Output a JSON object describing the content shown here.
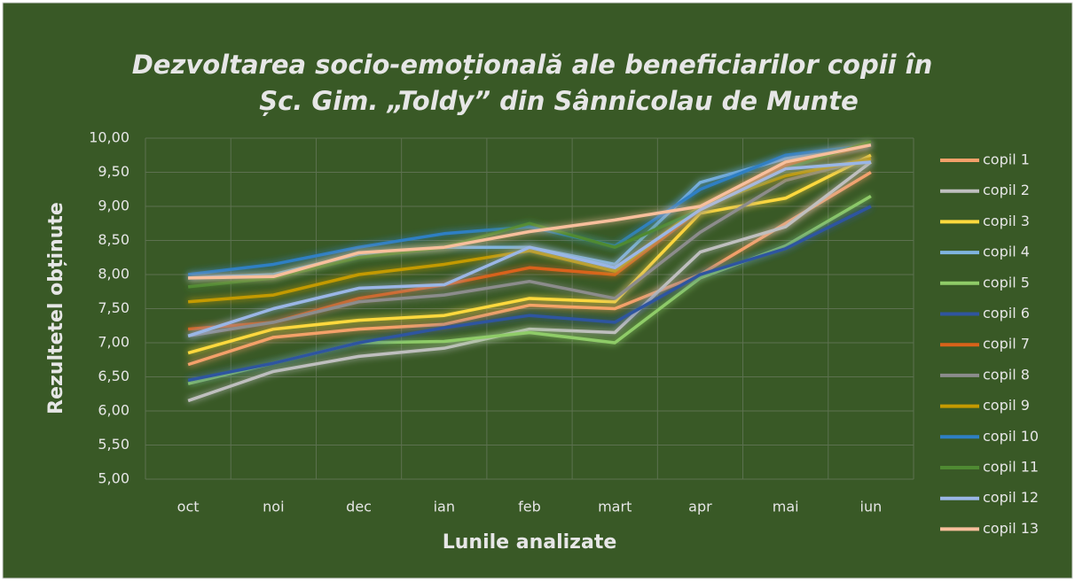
{
  "chart_data": {
    "type": "line",
    "title": [
      "Dezvoltarea socio-emoțională ale beneficiarilor copii  în",
      "Șc. Gim. „Toldy” din Sânnicolau de Munte"
    ],
    "xlabel": "Lunile analizate",
    "ylabel": "Rezultetel obținute",
    "categories": [
      "oct",
      "noi",
      "dec",
      "ian",
      "feb",
      "mart",
      "apr",
      "mai",
      "iun"
    ],
    "ylim": [
      5,
      10
    ],
    "yticks": [
      {
        "value": 5,
        "label": "5,00"
      },
      {
        "value": 5.5,
        "label": "5,50"
      },
      {
        "value": 6,
        "label": "6,00"
      },
      {
        "value": 6.5,
        "label": "6,50"
      },
      {
        "value": 7,
        "label": "7,00"
      },
      {
        "value": 7.5,
        "label": "7,50"
      },
      {
        "value": 8,
        "label": "8,00"
      },
      {
        "value": 8.5,
        "label": "8,50"
      },
      {
        "value": 9,
        "label": "9,00"
      },
      {
        "value": 9.5,
        "label": "9,50"
      },
      {
        "value": 10,
        "label": "10,00"
      }
    ],
    "grid": true,
    "legend": "right",
    "series": [
      {
        "name": "copil 1",
        "color": "#f4a06a",
        "values": [
          6.68,
          7.08,
          7.2,
          7.27,
          7.55,
          7.5,
          8.0,
          8.75,
          9.5
        ]
      },
      {
        "name": "copil 2",
        "color": "#bfbfbf",
        "values": [
          6.15,
          6.58,
          6.8,
          6.92,
          7.2,
          7.15,
          8.33,
          8.7,
          9.65
        ]
      },
      {
        "name": "copil 3",
        "color": "#ffd93d",
        "values": [
          6.85,
          7.2,
          7.33,
          7.4,
          7.65,
          7.6,
          8.9,
          9.12,
          9.75
        ]
      },
      {
        "name": "copil 4",
        "color": "#7fb4e0",
        "values": [
          7.95,
          8.0,
          8.3,
          8.4,
          8.4,
          8.15,
          9.35,
          9.7,
          9.9
        ]
      },
      {
        "name": "copil 5",
        "color": "#8fcc68",
        "values": [
          6.4,
          6.7,
          7.0,
          7.02,
          7.15,
          7.0,
          7.95,
          8.42,
          9.15
        ]
      },
      {
        "name": "copil 6",
        "color": "#2f55a0",
        "values": [
          6.45,
          6.7,
          7.0,
          7.22,
          7.4,
          7.3,
          8.0,
          8.38,
          9.0
        ]
      },
      {
        "name": "copil 7",
        "color": "#d9621a",
        "values": [
          7.2,
          7.3,
          7.65,
          7.85,
          8.1,
          8.0,
          8.95,
          9.6,
          9.9
        ]
      },
      {
        "name": "copil 8",
        "color": "#8c8c8c",
        "values": [
          7.1,
          7.3,
          7.6,
          7.7,
          7.9,
          7.65,
          8.62,
          9.38,
          9.7
        ]
      },
      {
        "name": "copil 9",
        "color": "#c49a00",
        "values": [
          7.6,
          7.7,
          8.0,
          8.15,
          8.35,
          8.05,
          9.0,
          9.45,
          9.7
        ]
      },
      {
        "name": "copil 10",
        "color": "#2e7fc4",
        "values": [
          8.0,
          8.15,
          8.4,
          8.6,
          8.7,
          8.42,
          9.25,
          9.75,
          9.9
        ]
      },
      {
        "name": "copil 11",
        "color": "#4f8a32",
        "values": [
          7.82,
          7.95,
          8.25,
          8.4,
          8.75,
          8.4,
          8.95,
          9.55,
          9.95
        ]
      },
      {
        "name": "copil 12",
        "color": "#9ab6e6",
        "values": [
          7.1,
          7.5,
          7.8,
          7.85,
          8.4,
          8.1,
          8.95,
          9.55,
          9.65
        ]
      },
      {
        "name": "copil 13",
        "color": "#f8bf9c",
        "values": [
          7.95,
          7.97,
          8.32,
          8.4,
          8.63,
          8.8,
          9.0,
          9.65,
          9.9
        ]
      }
    ]
  }
}
